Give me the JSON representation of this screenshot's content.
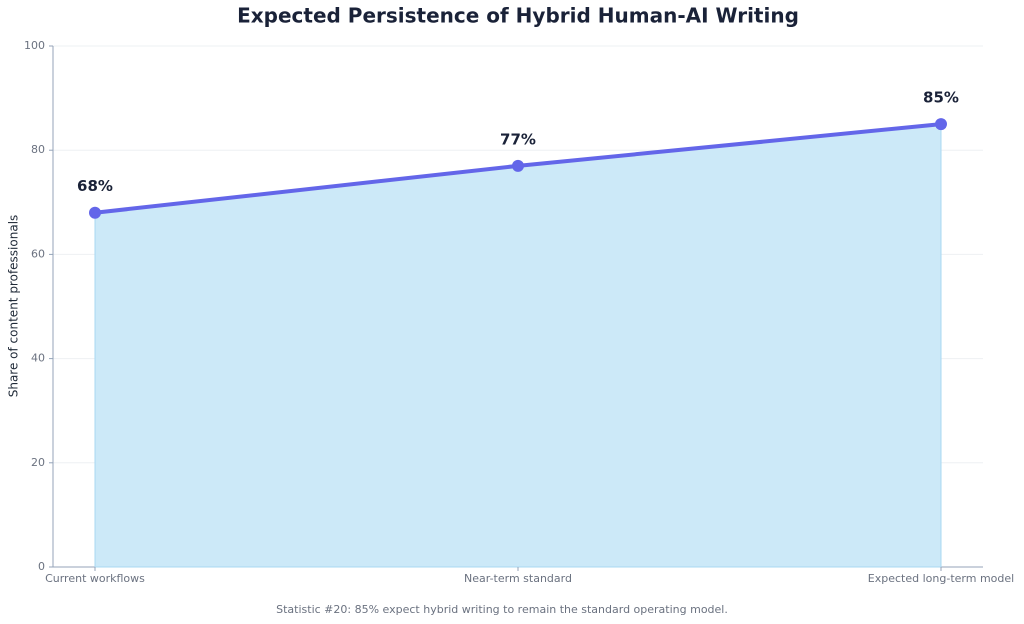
{
  "chart_data": {
    "type": "area",
    "title": "Expected Persistence of Hybrid Human-AI Writing",
    "y_label": "Share of content professionals",
    "caption": "Statistic #20: 85% expect hybrid writing to remain the standard operating model.",
    "categories": [
      "Current workflows",
      "Near-term standard",
      "Expected long-term model"
    ],
    "values": [
      68,
      77,
      85
    ],
    "value_labels": [
      "68%",
      "77%",
      "85%"
    ],
    "color": "#6366e9",
    "fill_color": "#cce9f8",
    "ylim": [
      0,
      100
    ],
    "yticks": [
      0,
      20,
      40,
      60,
      80,
      100
    ],
    "grid": true
  }
}
